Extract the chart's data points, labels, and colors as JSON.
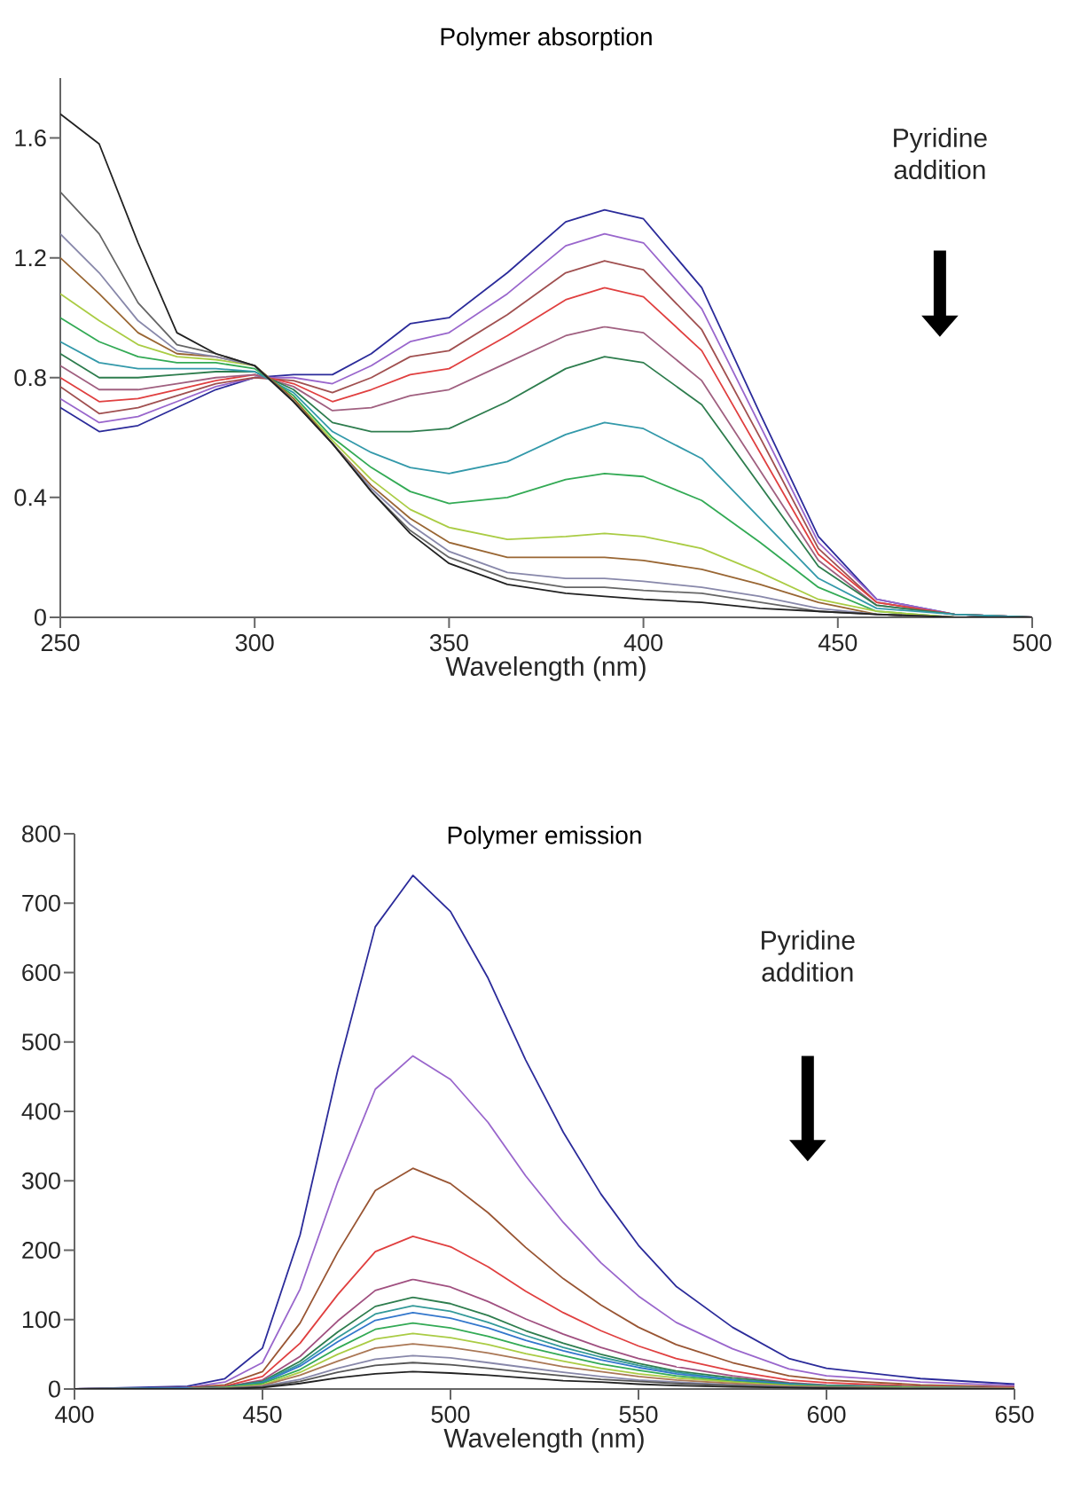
{
  "chart_data": [
    {
      "type": "line",
      "title": "Polymer absorption",
      "xlabel": "Wavelength (nm)",
      "annotations": [
        "Pyridine addition"
      ],
      "legend": false,
      "grid": false,
      "marker": "none",
      "line_style": "solid",
      "x": [
        250,
        260,
        270,
        280,
        290,
        300,
        310,
        320,
        330,
        340,
        350,
        365,
        380,
        390,
        400,
        415,
        430,
        445,
        460,
        480,
        500
      ],
      "xlim": [
        250,
        500
      ],
      "xticks": [
        250,
        300,
        350,
        400,
        450,
        500
      ],
      "ylim": [
        0,
        1.8
      ],
      "yticks": [
        0,
        0.4,
        0.8,
        1.2,
        1.6
      ],
      "series": [
        {
          "color": "#2b2b9a",
          "values": [
            0.7,
            0.62,
            0.64,
            0.7,
            0.76,
            0.8,
            0.81,
            0.81,
            0.88,
            0.98,
            1.0,
            1.15,
            1.32,
            1.36,
            1.33,
            1.1,
            0.68,
            0.27,
            0.06,
            0.01,
            0
          ]
        },
        {
          "color": "#9966cc",
          "values": [
            0.73,
            0.65,
            0.67,
            0.72,
            0.77,
            0.8,
            0.8,
            0.78,
            0.84,
            0.92,
            0.95,
            1.08,
            1.24,
            1.28,
            1.25,
            1.03,
            0.64,
            0.25,
            0.06,
            0.01,
            0
          ]
        },
        {
          "color": "#a05050",
          "values": [
            0.77,
            0.68,
            0.7,
            0.74,
            0.78,
            0.8,
            0.79,
            0.75,
            0.8,
            0.87,
            0.89,
            1.01,
            1.15,
            1.19,
            1.16,
            0.96,
            0.6,
            0.23,
            0.05,
            0.01,
            0
          ]
        },
        {
          "color": "#e04040",
          "values": [
            0.8,
            0.72,
            0.73,
            0.76,
            0.79,
            0.81,
            0.78,
            0.72,
            0.76,
            0.81,
            0.83,
            0.94,
            1.06,
            1.1,
            1.07,
            0.89,
            0.55,
            0.21,
            0.05,
            0.01,
            0
          ]
        },
        {
          "color": "#a06080",
          "values": [
            0.84,
            0.76,
            0.76,
            0.78,
            0.8,
            0.81,
            0.77,
            0.69,
            0.7,
            0.74,
            0.76,
            0.85,
            0.94,
            0.97,
            0.95,
            0.79,
            0.49,
            0.19,
            0.04,
            0.01,
            0
          ]
        },
        {
          "color": "#2e7d4e",
          "values": [
            0.88,
            0.8,
            0.8,
            0.81,
            0.82,
            0.82,
            0.76,
            0.65,
            0.62,
            0.62,
            0.63,
            0.72,
            0.83,
            0.87,
            0.85,
            0.71,
            0.44,
            0.17,
            0.04,
            0.01,
            0
          ]
        },
        {
          "color": "#3399aa",
          "values": [
            0.92,
            0.85,
            0.83,
            0.83,
            0.83,
            0.82,
            0.75,
            0.62,
            0.55,
            0.5,
            0.48,
            0.52,
            0.61,
            0.65,
            0.63,
            0.53,
            0.33,
            0.13,
            0.03,
            0.01,
            0
          ]
        },
        {
          "color": "#33aa55",
          "values": [
            1.0,
            0.92,
            0.87,
            0.85,
            0.85,
            0.83,
            0.74,
            0.6,
            0.5,
            0.42,
            0.38,
            0.4,
            0.46,
            0.48,
            0.47,
            0.39,
            0.25,
            0.1,
            0.02,
            0,
            0
          ]
        },
        {
          "color": "#aacc44",
          "values": [
            1.08,
            0.99,
            0.91,
            0.87,
            0.86,
            0.84,
            0.73,
            0.59,
            0.46,
            0.36,
            0.3,
            0.26,
            0.27,
            0.28,
            0.27,
            0.23,
            0.15,
            0.06,
            0.02,
            0,
            0
          ]
        },
        {
          "color": "#996633",
          "values": [
            1.2,
            1.08,
            0.95,
            0.88,
            0.87,
            0.84,
            0.73,
            0.58,
            0.44,
            0.33,
            0.25,
            0.2,
            0.2,
            0.2,
            0.19,
            0.16,
            0.11,
            0.05,
            0.01,
            0,
            0
          ]
        },
        {
          "color": "#8888aa",
          "values": [
            1.28,
            1.15,
            0.99,
            0.89,
            0.87,
            0.84,
            0.72,
            0.58,
            0.43,
            0.31,
            0.22,
            0.15,
            0.13,
            0.13,
            0.12,
            0.1,
            0.07,
            0.03,
            0.01,
            0,
            0
          ]
        },
        {
          "color": "#666666",
          "values": [
            1.42,
            1.28,
            1.05,
            0.91,
            0.88,
            0.84,
            0.72,
            0.58,
            0.42,
            0.29,
            0.2,
            0.13,
            0.1,
            0.1,
            0.09,
            0.08,
            0.05,
            0.02,
            0.01,
            0,
            0
          ]
        },
        {
          "color": "#222222",
          "values": [
            1.68,
            1.58,
            1.25,
            0.95,
            0.88,
            0.84,
            0.72,
            0.58,
            0.42,
            0.28,
            0.18,
            0.11,
            0.08,
            0.07,
            0.06,
            0.05,
            0.03,
            0.02,
            0.01,
            0,
            0
          ]
        }
      ]
    },
    {
      "type": "line",
      "title": "Polymer emission",
      "xlabel": "Wavelength (nm)",
      "annotations": [
        "Pyridine addition"
      ],
      "legend": false,
      "grid": false,
      "marker": "none",
      "line_style": "solid",
      "x": [
        400,
        430,
        440,
        450,
        460,
        470,
        480,
        490,
        500,
        510,
        520,
        530,
        540,
        550,
        560,
        575,
        590,
        600,
        625,
        650
      ],
      "xlim": [
        400,
        650
      ],
      "xticks": [
        400,
        450,
        500,
        550,
        600,
        650
      ],
      "ylim": [
        0,
        800
      ],
      "yticks": [
        0,
        100,
        200,
        300,
        400,
        500,
        600,
        700,
        800
      ],
      "series": [
        {
          "color": "#2b2b9a",
          "values": [
            0,
            4,
            15,
            59,
            222,
            459,
            666,
            740,
            688,
            592,
            474,
            370,
            281,
            207,
            148,
            89,
            44,
            30,
            15,
            7
          ]
        },
        {
          "color": "#9966cc",
          "values": [
            0,
            2,
            10,
            38,
            144,
            298,
            432,
            480,
            446,
            384,
            307,
            240,
            182,
            134,
            96,
            58,
            29,
            19,
            10,
            5
          ]
        },
        {
          "color": "#995533",
          "values": [
            0,
            2,
            6,
            25,
            95,
            197,
            286,
            318,
            296,
            254,
            204,
            159,
            121,
            89,
            64,
            38,
            19,
            13,
            6,
            3
          ]
        },
        {
          "color": "#e04040",
          "values": [
            0,
            1,
            4,
            18,
            66,
            136,
            198,
            220,
            205,
            176,
            141,
            110,
            84,
            62,
            44,
            26,
            13,
            9,
            4,
            2
          ]
        },
        {
          "color": "#a05080",
          "values": [
            0,
            1,
            3,
            13,
            47,
            98,
            142,
            158,
            147,
            126,
            101,
            79,
            60,
            44,
            32,
            19,
            9,
            6,
            3,
            2
          ]
        },
        {
          "color": "#2e7d4e",
          "values": [
            0,
            1,
            3,
            11,
            40,
            82,
            119,
            132,
            123,
            106,
            84,
            66,
            50,
            37,
            26,
            16,
            8,
            5,
            3,
            1
          ]
        },
        {
          "color": "#339999",
          "values": [
            0,
            1,
            2,
            10,
            36,
            74,
            108,
            120,
            112,
            96,
            77,
            60,
            46,
            34,
            24,
            14,
            7,
            5,
            2,
            1
          ]
        },
        {
          "color": "#3377cc",
          "values": [
            0,
            1,
            2,
            9,
            33,
            68,
            99,
            110,
            102,
            88,
            70,
            55,
            42,
            31,
            22,
            13,
            7,
            4,
            2,
            1
          ]
        },
        {
          "color": "#33aa55",
          "values": [
            0,
            0,
            2,
            8,
            28,
            59,
            86,
            95,
            88,
            76,
            61,
            48,
            36,
            27,
            19,
            11,
            6,
            4,
            2,
            1
          ]
        },
        {
          "color": "#aacc44",
          "values": [
            0,
            0,
            2,
            6,
            24,
            50,
            72,
            80,
            74,
            64,
            51,
            40,
            30,
            22,
            16,
            10,
            5,
            3,
            2,
            1
          ]
        },
        {
          "color": "#aa7755",
          "values": [
            0,
            0,
            1,
            5,
            20,
            40,
            59,
            65,
            60,
            52,
            42,
            32,
            25,
            18,
            13,
            8,
            4,
            3,
            1,
            1
          ]
        },
        {
          "color": "#8888aa",
          "values": [
            0,
            0,
            1,
            4,
            14,
            30,
            43,
            48,
            45,
            38,
            31,
            24,
            18,
            13,
            10,
            6,
            3,
            2,
            1,
            0
          ]
        },
        {
          "color": "#555555",
          "values": [
            0,
            0,
            1,
            3,
            11,
            24,
            34,
            38,
            35,
            30,
            24,
            19,
            14,
            11,
            8,
            5,
            2,
            2,
            1,
            0
          ]
        },
        {
          "color": "#222222",
          "values": [
            0,
            0,
            0,
            2,
            8,
            16,
            22,
            25,
            23,
            20,
            16,
            12,
            10,
            7,
            5,
            3,
            2,
            1,
            0,
            0
          ]
        }
      ]
    }
  ]
}
